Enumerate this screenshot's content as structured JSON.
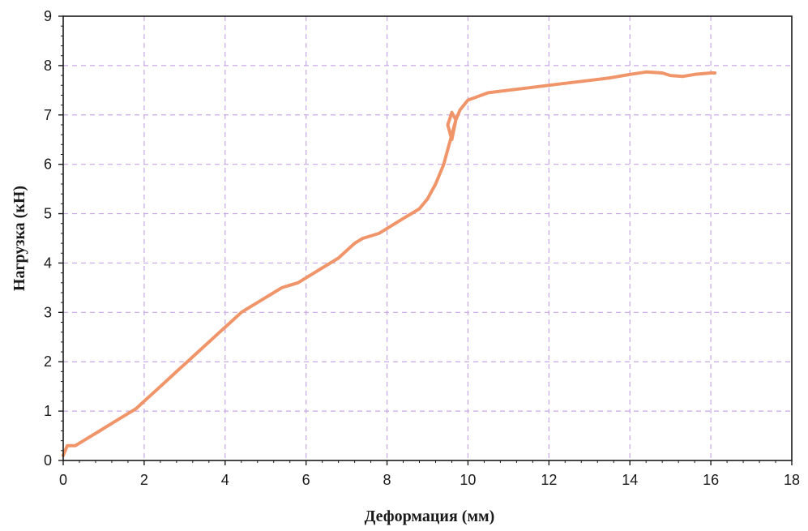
{
  "chart_data": {
    "type": "line",
    "title": "",
    "xlabel": "Деформация (мм)",
    "ylabel": "Нагрузка (кН)",
    "xlim": [
      0,
      18
    ],
    "ylim": [
      0,
      9
    ],
    "xticks": [
      "0",
      "2",
      "4",
      "6",
      "8",
      "10",
      "12",
      "14",
      "16",
      "18"
    ],
    "yticks": [
      "0",
      "1",
      "2",
      "3",
      "4",
      "5",
      "6",
      "7",
      "8",
      "9"
    ],
    "grid": true,
    "legend": "none",
    "colors": {
      "series": "#f0956a",
      "grid": "#c9a7e6",
      "axis": "#1a1a1a"
    },
    "series": [
      {
        "x": [
          0,
          0.1,
          0.3,
          0.6,
          0.9,
          1.2,
          1.5,
          1.8,
          2.0,
          2.2,
          2.4,
          2.6,
          2.8,
          3.0,
          3.2,
          3.4,
          3.6,
          3.8,
          4.0,
          4.2,
          4.4,
          4.6,
          4.8,
          5.0,
          5.2,
          5.4,
          5.6,
          5.8,
          6.0,
          6.2,
          6.4,
          6.6,
          6.8,
          7.0,
          7.2,
          7.4,
          7.6,
          7.8,
          8.0,
          8.2,
          8.4,
          8.6,
          8.8,
          9.0,
          9.2,
          9.4,
          9.5,
          9.6,
          9.7,
          9.6,
          9.5,
          9.6,
          9.7,
          9.8,
          10.0,
          10.5,
          11.0,
          11.5,
          12.0,
          12.5,
          13.0,
          13.5,
          14.0,
          14.4,
          14.8,
          15.0,
          15.3,
          15.6,
          16.0,
          16.1
        ],
        "y": [
          0.1,
          0.3,
          0.3,
          0.45,
          0.6,
          0.75,
          0.9,
          1.05,
          1.2,
          1.35,
          1.5,
          1.65,
          1.8,
          1.95,
          2.1,
          2.25,
          2.4,
          2.55,
          2.7,
          2.85,
          3.0,
          3.1,
          3.2,
          3.3,
          3.4,
          3.5,
          3.55,
          3.6,
          3.7,
          3.8,
          3.9,
          4.0,
          4.1,
          4.25,
          4.4,
          4.5,
          4.55,
          4.6,
          4.7,
          4.8,
          4.9,
          5.0,
          5.1,
          5.3,
          5.6,
          6.0,
          6.3,
          6.6,
          6.9,
          7.05,
          6.8,
          6.5,
          6.9,
          7.1,
          7.3,
          7.45,
          7.5,
          7.55,
          7.6,
          7.65,
          7.7,
          7.75,
          7.82,
          7.87,
          7.85,
          7.8,
          7.78,
          7.82,
          7.85,
          7.85
        ]
      }
    ]
  }
}
